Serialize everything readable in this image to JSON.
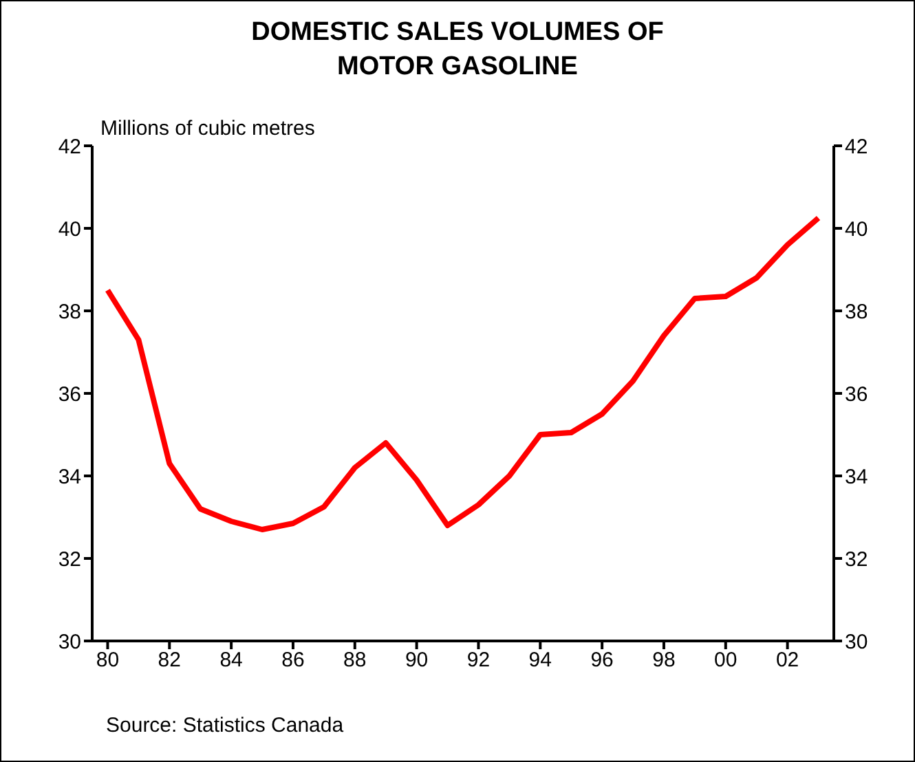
{
  "chart_data": {
    "type": "line",
    "title": "DOMESTIC SALES VOLUMES OF\nMOTOR GASOLINE",
    "ylabel": "Millions of cubic metres",
    "annotations": [
      "Source: Statistics Canada"
    ],
    "x": [
      1980,
      1981,
      1982,
      1983,
      1984,
      1985,
      1986,
      1987,
      1988,
      1989,
      1990,
      1991,
      1992,
      1993,
      1994,
      1995,
      1996,
      1997,
      1998,
      1999,
      2000,
      2001,
      2002,
      2003
    ],
    "series": [
      {
        "color": "#ff0000",
        "values": [
          38.5,
          37.3,
          34.3,
          33.2,
          32.9,
          32.7,
          32.85,
          33.25,
          34.2,
          34.8,
          33.9,
          32.8,
          33.3,
          34.0,
          35.0,
          35.05,
          35.5,
          36.3,
          37.4,
          38.3,
          38.35,
          38.8,
          39.6,
          40.25
        ]
      }
    ],
    "xlim": [
      1979.5,
      2003.5
    ],
    "xticks": [
      {
        "value": 1980,
        "label": "80"
      },
      {
        "value": 1982,
        "label": "82"
      },
      {
        "value": 1984,
        "label": "84"
      },
      {
        "value": 1986,
        "label": "86"
      },
      {
        "value": 1988,
        "label": "88"
      },
      {
        "value": 1990,
        "label": "90"
      },
      {
        "value": 1992,
        "label": "92"
      },
      {
        "value": 1994,
        "label": "94"
      },
      {
        "value": 1996,
        "label": "96"
      },
      {
        "value": 1998,
        "label": "98"
      },
      {
        "value": 2000,
        "label": "00"
      },
      {
        "value": 2002,
        "label": "02"
      }
    ],
    "ylim": [
      30,
      42
    ],
    "yticks": [
      30,
      32,
      34,
      36,
      38,
      40,
      42
    ],
    "y2lim": [
      30,
      42
    ],
    "y2ticks": [
      30,
      32,
      34,
      36,
      38,
      40,
      42
    ],
    "grid": false,
    "legend": false,
    "marker": "none",
    "line_style": "solid"
  }
}
